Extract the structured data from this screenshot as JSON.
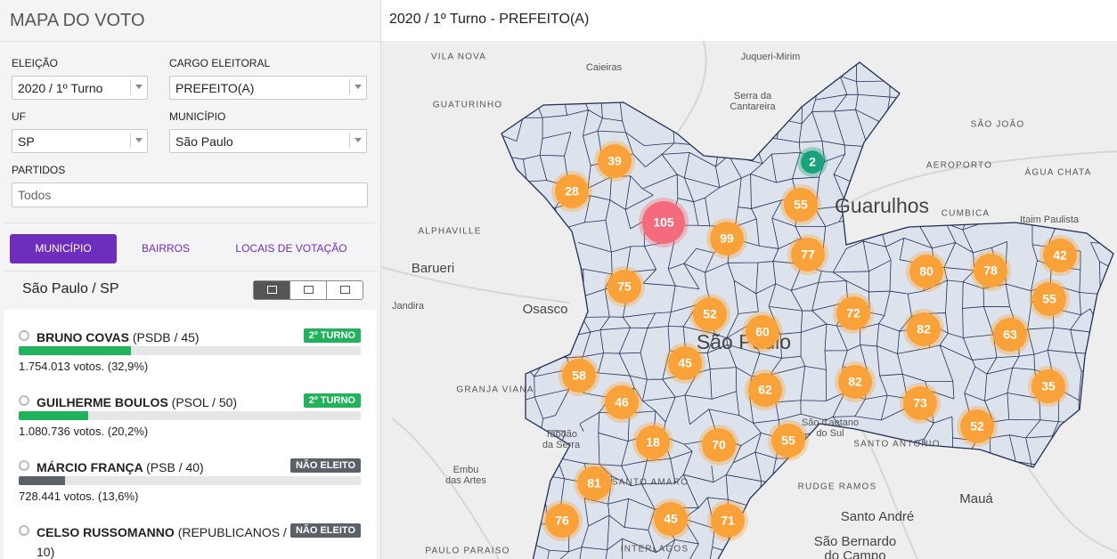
{
  "sidebar": {
    "title": "MAPA DO VOTO",
    "fields": [
      {
        "label": "ELEIÇÃO",
        "value": "2020 / 1º Turno"
      },
      {
        "label": "CARGO ELEITORAL",
        "value": "PREFEITO(A)"
      },
      {
        "label": "UF",
        "value": "SP"
      },
      {
        "label": "MUNICÍPIO",
        "value": "São Paulo"
      }
    ],
    "partidos": {
      "label": "PARTIDOS",
      "placeholder": "Todos"
    },
    "tabs": [
      "MUNICÍPIO",
      "BAIRROS",
      "LOCAIS DE VOTAÇÃO"
    ],
    "location": "São Paulo / SP",
    "candidates": [
      {
        "name": "BRUNO COVAS",
        "party": "(PSDB / 45)",
        "status": "2º TURNO",
        "color": "#21b35b",
        "votes": "1.754.013 votos. (32,9%)",
        "share": 32.9
      },
      {
        "name": "GUILHERME BOULOS",
        "party": "(PSOL / 50)",
        "status": "2º TURNO",
        "color": "#21b35b",
        "votes": "1.080.736 votos. (20,2%)",
        "share": 20.2
      },
      {
        "name": "MÁRCIO FRANÇA",
        "party": "(PSB / 40)",
        "status": "NÃO ELEITO",
        "color": "#5b6169",
        "votes": "728.441 votos. (13,6%)",
        "share": 13.6
      },
      {
        "name": "CELSO RUSSOMANNO",
        "party": "(REPUBLICANOS / 10)",
        "status": "NÃO ELEITO",
        "color": "#5b6169"
      }
    ]
  },
  "map": {
    "title": "2020 / 1º Turno - PREFEITO(A)",
    "labels": [
      {
        "text": "VILA NOVA",
        "style": "caps"
      },
      {
        "text": "Caieiras",
        "style": "town"
      },
      {
        "text": "Juqueri-Mirim",
        "style": "town"
      },
      {
        "text": "GUATURINHO",
        "style": "caps"
      },
      {
        "text": "Serra da",
        "style": "town"
      },
      {
        "text": "Cantareira",
        "style": "town"
      },
      {
        "text": "SÃO JOÃO",
        "style": "caps"
      },
      {
        "text": "AEROPORTO",
        "style": "caps"
      },
      {
        "text": "ÁGUA CHATA",
        "style": "caps"
      },
      {
        "text": "Guarulhos",
        "style": "big"
      },
      {
        "text": "CUMBICA",
        "style": "caps"
      },
      {
        "text": "Itaim Paulista",
        "style": "town"
      },
      {
        "text": "ALPHAVILLE",
        "style": "caps"
      },
      {
        "text": "Barueri",
        "style": "city"
      },
      {
        "text": "Osasco",
        "style": "city"
      },
      {
        "text": "Jandira",
        "style": "town"
      },
      {
        "text": "São Paulo",
        "style": "big"
      },
      {
        "text": "GRANJA VIANA",
        "style": "caps"
      },
      {
        "text": "Taboão",
        "style": "town"
      },
      {
        "text": "da Serra",
        "style": "town"
      },
      {
        "text": "Embu",
        "style": "town"
      },
      {
        "text": "das Artes",
        "style": "town"
      },
      {
        "text": "SANTO AMARO",
        "style": "caps"
      },
      {
        "text": "RUDGE RAMOS",
        "style": "caps"
      },
      {
        "text": "Santo André",
        "style": "city"
      },
      {
        "text": "Mauá",
        "style": "city"
      },
      {
        "text": "São Bernardo",
        "style": "city"
      },
      {
        "text": "do Campo",
        "style": "city"
      },
      {
        "text": "São Caetano",
        "style": "town"
      },
      {
        "text": "do Sul",
        "style": "town"
      },
      {
        "text": "SANTO ANTONIO",
        "style": "caps"
      },
      {
        "text": "PAULO PARAISO",
        "style": "caps"
      },
      {
        "text": "INTERLAGOS",
        "style": "caps"
      }
    ],
    "clusters": [
      {
        "count": 39,
        "color": "#f9a23a"
      },
      {
        "count": 28,
        "color": "#f9a23a"
      },
      {
        "count": 105,
        "color": "#f36b7c"
      },
      {
        "count": 99,
        "color": "#f9a23a"
      },
      {
        "count": 55,
        "color": "#f9a23a"
      },
      {
        "count": 77,
        "color": "#f9a23a"
      },
      {
        "count": 75,
        "color": "#f9a23a"
      },
      {
        "count": 52,
        "color": "#f9a23a"
      },
      {
        "count": 60,
        "color": "#f9a23a"
      },
      {
        "count": 72,
        "color": "#f9a23a"
      },
      {
        "count": 80,
        "color": "#f9a23a"
      },
      {
        "count": 78,
        "color": "#f9a23a"
      },
      {
        "count": 42,
        "color": "#f9a23a"
      },
      {
        "count": 55,
        "color": "#f9a23a"
      },
      {
        "count": 82,
        "color": "#f9a23a"
      },
      {
        "count": 63,
        "color": "#f9a23a"
      },
      {
        "count": 58,
        "color": "#f9a23a"
      },
      {
        "count": 45,
        "color": "#f9a23a"
      },
      {
        "count": 62,
        "color": "#f9a23a"
      },
      {
        "count": 82,
        "color": "#f9a23a"
      },
      {
        "count": 35,
        "color": "#f9a23a"
      },
      {
        "count": 46,
        "color": "#f9a23a"
      },
      {
        "count": 73,
        "color": "#f9a23a"
      },
      {
        "count": 52,
        "color": "#f9a23a"
      },
      {
        "count": 18,
        "color": "#f9a23a"
      },
      {
        "count": 70,
        "color": "#f9a23a"
      },
      {
        "count": 55,
        "color": "#f9a23a"
      },
      {
        "count": 81,
        "color": "#f9a23a"
      },
      {
        "count": 76,
        "color": "#f9a23a"
      },
      {
        "count": 45,
        "color": "#f9a23a"
      },
      {
        "count": 71,
        "color": "#f9a23a"
      },
      {
        "count": 2,
        "color": "#1aa37a"
      }
    ]
  }
}
